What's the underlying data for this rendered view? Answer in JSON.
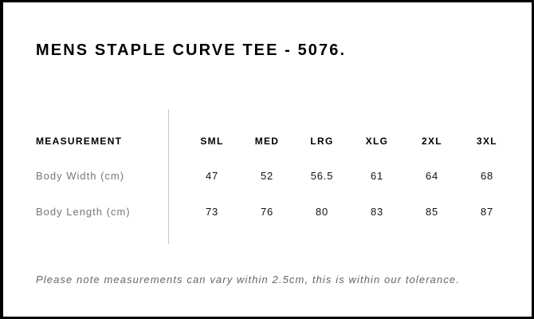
{
  "title": "MENS STAPLE CURVE TEE - 5076.",
  "table": {
    "header_label": "MEASUREMENT",
    "sizes": [
      "SML",
      "MED",
      "LRG",
      "XLG",
      "2XL",
      "3XL"
    ],
    "rows": [
      {
        "label": "Body Width (cm)",
        "values": [
          "47",
          "52",
          "56.5",
          "61",
          "64",
          "68"
        ]
      },
      {
        "label": "Body Length (cm)",
        "values": [
          "73",
          "76",
          "80",
          "83",
          "85",
          "87"
        ]
      }
    ]
  },
  "note": "Please note measurements can vary within 2.5cm, this is within our tolerance."
}
